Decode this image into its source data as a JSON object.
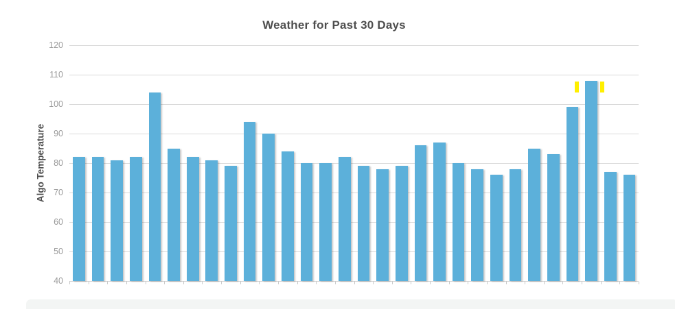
{
  "page": {
    "background_color": "#ffffff",
    "bottom_panel_color": "#f3f5f4"
  },
  "chart_data": {
    "type": "bar",
    "title": "Weather for Past 30 Days",
    "xlabel": "",
    "ylabel": "Algo Temperature",
    "values": [
      82,
      82,
      81,
      82,
      104,
      85,
      82,
      81,
      79,
      94,
      90,
      84,
      80,
      80,
      82,
      79,
      78,
      79,
      86,
      87,
      80,
      78,
      76,
      78,
      85,
      83,
      99,
      108,
      77,
      76
    ],
    "ylim": [
      40,
      120
    ],
    "y_ticks": [
      120,
      110,
      100,
      90,
      80,
      70,
      60,
      50,
      40
    ],
    "x_tick_labels": [],
    "grid": true,
    "legend_position": "none",
    "bar_color": "#5CB0DA",
    "bar_shadow": true,
    "title_color": "#4e4e4e",
    "axis_label_color": "#4e4e4e",
    "tick_text_color": "#999999",
    "grid_color": "#d9d9d9",
    "baseline_color": "#c9c9c9",
    "annotations": [
      {
        "type": "highlight-mark",
        "color": "#ffef00",
        "x_frac": 0.8914,
        "value_top": 107.7,
        "value_bottom": 104.0
      },
      {
        "type": "highlight-mark",
        "color": "#ffef00",
        "x_frac": 0.9361,
        "value_top": 107.7,
        "value_bottom": 104.0
      }
    ]
  }
}
